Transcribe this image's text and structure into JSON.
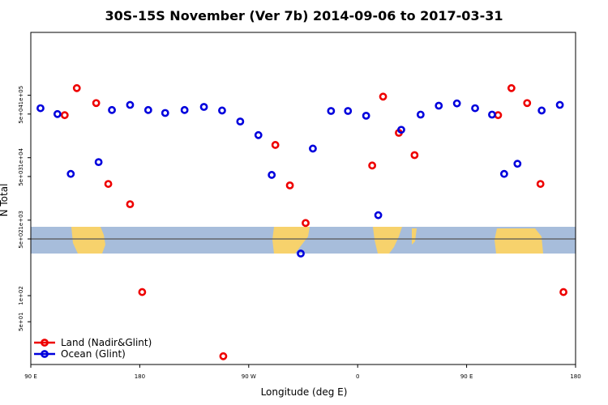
{
  "chart_data": {
    "type": "scatter",
    "title": "30S-15S November (Ver 7b)   2014-09-06 to 2017-03-31",
    "xlabel": "Longitude (deg E)",
    "ylabel": "N Total",
    "x_ticks": [
      {
        "value": 90,
        "label": "90 E"
      },
      {
        "value": 180,
        "label": "180"
      },
      {
        "value": 270,
        "label": "90 W"
      },
      {
        "value": 360,
        "label": "0"
      },
      {
        "value": 450,
        "label": "90 E"
      },
      {
        "value": 540,
        "label": "180"
      }
    ],
    "xlim": [
      90,
      540
    ],
    "y_scale": "log",
    "y_ticks_upper": [
      {
        "value": 500,
        "label": "5e+02"
      },
      {
        "value": 1000,
        "label": "1e+03"
      },
      {
        "value": 5000,
        "label": "5e+03"
      },
      {
        "value": 10000,
        "label": "1e+04"
      },
      {
        "value": 50000,
        "label": "5e+04"
      },
      {
        "value": 100000,
        "label": "1e+05"
      }
    ],
    "y_ticks_lower": [
      {
        "value": 50,
        "label": "5e+01"
      },
      {
        "value": 100,
        "label": "1e+02"
      }
    ],
    "reference_line": 500,
    "legend_position": "bottom-left",
    "series": [
      {
        "name": "Land (Nadir&Glint)",
        "color": "#ee0000",
        "points": [
          {
            "x": 118,
            "y": 48000
          },
          {
            "x": 128,
            "y": 130000
          },
          {
            "x": 144,
            "y": 75000
          },
          {
            "x": 154,
            "y": 3800
          },
          {
            "x": 172,
            "y": 1800
          },
          {
            "x": 182,
            "y": 110
          },
          {
            "x": 249,
            "y": 20
          },
          {
            "x": 292,
            "y": 16000
          },
          {
            "x": 304,
            "y": 3600
          },
          {
            "x": 317,
            "y": 900
          },
          {
            "x": 372,
            "y": 7500
          },
          {
            "x": 381,
            "y": 95000
          },
          {
            "x": 394,
            "y": 25000
          },
          {
            "x": 407,
            "y": 11000
          },
          {
            "x": 476,
            "y": 48000
          },
          {
            "x": 487,
            "y": 130000
          },
          {
            "x": 500,
            "y": 75000
          },
          {
            "x": 511,
            "y": 3800
          },
          {
            "x": 530,
            "y": 110
          }
        ]
      },
      {
        "name": "Ocean (Glint)",
        "color": "#0000dd",
        "points": [
          {
            "x": 98,
            "y": 62000
          },
          {
            "x": 112,
            "y": 50000
          },
          {
            "x": 123,
            "y": 5500
          },
          {
            "x": 146,
            "y": 8500
          },
          {
            "x": 157,
            "y": 58000
          },
          {
            "x": 172,
            "y": 70000
          },
          {
            "x": 187,
            "y": 58000
          },
          {
            "x": 201,
            "y": 52000
          },
          {
            "x": 217,
            "y": 58000
          },
          {
            "x": 233,
            "y": 65000
          },
          {
            "x": 248,
            "y": 57000
          },
          {
            "x": 263,
            "y": 38000
          },
          {
            "x": 278,
            "y": 23000
          },
          {
            "x": 289,
            "y": 5300
          },
          {
            "x": 313,
            "y": 330
          },
          {
            "x": 323,
            "y": 14000
          },
          {
            "x": 338,
            "y": 56000
          },
          {
            "x": 352,
            "y": 56000
          },
          {
            "x": 367,
            "y": 47000
          },
          {
            "x": 377,
            "y": 1200
          },
          {
            "x": 396,
            "y": 28000
          },
          {
            "x": 412,
            "y": 49000
          },
          {
            "x": 427,
            "y": 68000
          },
          {
            "x": 442,
            "y": 74000
          },
          {
            "x": 457,
            "y": 62000
          },
          {
            "x": 471,
            "y": 49000
          },
          {
            "x": 481,
            "y": 5500
          },
          {
            "x": 492,
            "y": 8000
          },
          {
            "x": 512,
            "y": 57000
          },
          {
            "x": 527,
            "y": 70000
          }
        ]
      }
    ]
  }
}
